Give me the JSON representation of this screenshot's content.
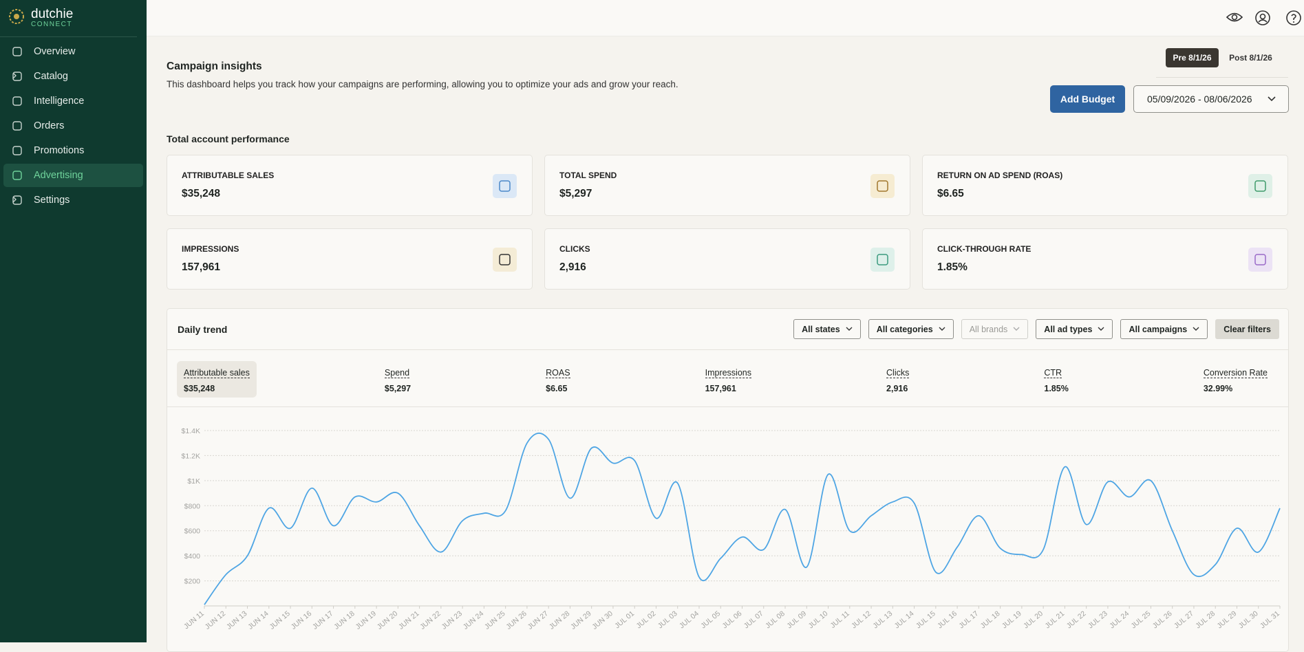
{
  "sidebar": {
    "brand": "dutchie",
    "sub": "CONNECT",
    "nav": [
      "Overview",
      "Catalog",
      "Intelligence",
      "Orders",
      "Promotions",
      "Advertising",
      "Settings"
    ]
  },
  "header": {
    "title": "Campaign insights",
    "description": "This dashboard helps you track how your campaigns are performing, allowing you to optimize your ads and grow your reach.",
    "toggle": [
      "Pre 8/1/26",
      "Post 8/1/26"
    ],
    "button": "Add Budget",
    "date_range": "05/09/2026 - 08/06/2026"
  },
  "section_title": "Total account performance",
  "cards": [
    {
      "label": "ATTRIBUTABLE SALES",
      "value": "$35,248"
    },
    {
      "label": "TOTAL SPEND",
      "value": "$5,297"
    },
    {
      "label": "RETURN ON AD SPEND (ROAS)",
      "value": "$6.65"
    },
    {
      "label": "IMPRESSIONS",
      "value": "157,961"
    },
    {
      "label": "CLICKS",
      "value": "2,916"
    },
    {
      "label": "CLICK-THROUGH RATE",
      "value": "1.85%"
    }
  ],
  "trend": {
    "title": "Daily trend",
    "filters": [
      "All states",
      "All categories",
      "All brands",
      "All ad types",
      "All campaigns"
    ],
    "clear": "Clear filters",
    "metrics": [
      {
        "label": "Attributable sales",
        "value": "$35,248"
      },
      {
        "label": "Spend",
        "value": "$5,297"
      },
      {
        "label": "ROAS",
        "value": "$6.65"
      },
      {
        "label": "Impressions",
        "value": "157,961"
      },
      {
        "label": "Clicks",
        "value": "2,916"
      },
      {
        "label": "CTR",
        "value": "1.85%"
      },
      {
        "label": "Conversion Rate",
        "value": "32.99%"
      }
    ]
  },
  "chart_data": {
    "type": "line",
    "categories": [
      "JUN 11",
      "JUN 12",
      "JUN 13",
      "JUN 14",
      "JUN 15",
      "JUN 16",
      "JUN 17",
      "JUN 18",
      "JUN 19",
      "JUN 20",
      "JUN 21",
      "JUN 22",
      "JUN 23",
      "JUN 24",
      "JUN 25",
      "JUN 26",
      "JUN 27",
      "JUN 28",
      "JUN 29",
      "JUN 30",
      "JUL 01",
      "JUL 02",
      "JUL 03",
      "JUL 04",
      "JUL 05",
      "JUL 06",
      "JUL 07",
      "JUL 08",
      "JUL 09",
      "JUL 10",
      "JUL 11",
      "JUL 12",
      "JUL 13",
      "JUL 14",
      "JUL 15",
      "JUL 16",
      "JUL 17",
      "JUL 18",
      "JUL 19",
      "JUL 20",
      "JUL 21",
      "JUL 22",
      "JUL 23",
      "JUL 24",
      "JUL 25",
      "JUL 26",
      "JUL 27",
      "JUL 28",
      "JUL 29",
      "JUL 30",
      "JUL 31"
    ],
    "series": [
      {
        "name": "Attributable sales",
        "color": "#4ea5e4",
        "values": [
          10,
          250,
          400,
          780,
          620,
          940,
          640,
          870,
          830,
          900,
          640,
          430,
          680,
          740,
          760,
          1300,
          1330,
          860,
          1260,
          1140,
          1160,
          700,
          980,
          230,
          380,
          550,
          450,
          770,
          310,
          1050,
          600,
          720,
          830,
          820,
          270,
          470,
          720,
          460,
          410,
          450,
          1110,
          650,
          990,
          870,
          1000,
          600,
          250,
          330,
          620,
          430,
          780
        ]
      }
    ],
    "ylim": [
      0,
      1400
    ],
    "yticks": [
      {
        "value": 200,
        "label": "$200"
      },
      {
        "value": 400,
        "label": "$400"
      },
      {
        "value": 600,
        "label": "$600"
      },
      {
        "value": 800,
        "label": "$800"
      },
      {
        "value": 1000,
        "label": "$1K"
      },
      {
        "value": 1200,
        "label": "$1.2K"
      },
      {
        "value": 1400,
        "label": "$1.4K"
      }
    ],
    "grid": true
  }
}
